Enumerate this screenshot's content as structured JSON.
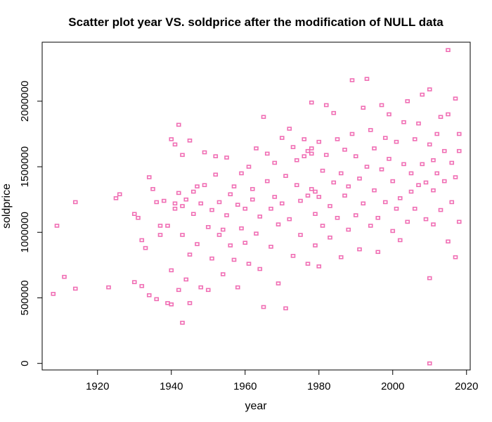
{
  "chart_data": {
    "type": "scatter",
    "title": "Scatter plot year VS. soldprice after the modification of NULL data",
    "xlabel": "year",
    "ylabel": "soldprice",
    "xlim": [
      1905,
      2021
    ],
    "ylim": [
      -50000,
      2450000
    ],
    "xticks": [
      1920,
      1940,
      1960,
      1980,
      2000,
      2020
    ],
    "yticks": [
      0,
      500000,
      1000000,
      1500000,
      2000000
    ],
    "xtick_labels": [
      "1920",
      "1940",
      "1960",
      "1980",
      "2000",
      "2020"
    ],
    "ytick_labels": [
      "0",
      "500000",
      "1000000",
      "1500000",
      "2000000"
    ],
    "grid": false,
    "marker": "open-square",
    "color": "#f06eb4",
    "points": [
      [
        1908,
        530000
      ],
      [
        1909,
        1050000
      ],
      [
        1911,
        660000
      ],
      [
        1914,
        570000
      ],
      [
        1914,
        1230000
      ],
      [
        1923,
        580000
      ],
      [
        1925,
        1260000
      ],
      [
        1926,
        1290000
      ],
      [
        1930,
        620000
      ],
      [
        1930,
        1140000
      ],
      [
        1931,
        1110000
      ],
      [
        1932,
        940000
      ],
      [
        1932,
        590000
      ],
      [
        1933,
        880000
      ],
      [
        1934,
        1420000
      ],
      [
        1934,
        520000
      ],
      [
        1935,
        1330000
      ],
      [
        1936,
        490000
      ],
      [
        1936,
        1230000
      ],
      [
        1937,
        980000
      ],
      [
        1937,
        1050000
      ],
      [
        1938,
        1240000
      ],
      [
        1939,
        1050000
      ],
      [
        1939,
        460000
      ],
      [
        1940,
        710000
      ],
      [
        1940,
        450000
      ],
      [
        1940,
        1710000
      ],
      [
        1941,
        1670000
      ],
      [
        1941,
        1220000
      ],
      [
        1941,
        1180000
      ],
      [
        1942,
        1820000
      ],
      [
        1942,
        560000
      ],
      [
        1942,
        1300000
      ],
      [
        1943,
        1590000
      ],
      [
        1943,
        1200000
      ],
      [
        1943,
        980000
      ],
      [
        1943,
        310000
      ],
      [
        1944,
        1250000
      ],
      [
        1944,
        640000
      ],
      [
        1945,
        1700000
      ],
      [
        1945,
        830000
      ],
      [
        1945,
        460000
      ],
      [
        1946,
        1310000
      ],
      [
        1946,
        1140000
      ],
      [
        1947,
        1350000
      ],
      [
        1947,
        910000
      ],
      [
        1948,
        580000
      ],
      [
        1948,
        1220000
      ],
      [
        1949,
        1610000
      ],
      [
        1949,
        1360000
      ],
      [
        1950,
        1040000
      ],
      [
        1950,
        560000
      ],
      [
        1951,
        1170000
      ],
      [
        1951,
        800000
      ],
      [
        1952,
        1580000
      ],
      [
        1952,
        1440000
      ],
      [
        1953,
        1230000
      ],
      [
        1953,
        980000
      ],
      [
        1954,
        1020000
      ],
      [
        1954,
        680000
      ],
      [
        1955,
        1130000
      ],
      [
        1955,
        1570000
      ],
      [
        1956,
        900000
      ],
      [
        1956,
        1290000
      ],
      [
        1957,
        790000
      ],
      [
        1957,
        1350000
      ],
      [
        1958,
        1210000
      ],
      [
        1958,
        580000
      ],
      [
        1959,
        1450000
      ],
      [
        1959,
        1030000
      ],
      [
        1960,
        1180000
      ],
      [
        1960,
        920000
      ],
      [
        1961,
        1500000
      ],
      [
        1961,
        760000
      ],
      [
        1962,
        1330000
      ],
      [
        1962,
        1250000
      ],
      [
        1963,
        1640000
      ],
      [
        1963,
        990000
      ],
      [
        1964,
        1120000
      ],
      [
        1964,
        720000
      ],
      [
        1965,
        1880000
      ],
      [
        1965,
        430000
      ],
      [
        1966,
        1600000
      ],
      [
        1966,
        1390000
      ],
      [
        1967,
        1180000
      ],
      [
        1967,
        890000
      ],
      [
        1968,
        1270000
      ],
      [
        1968,
        1530000
      ],
      [
        1969,
        1060000
      ],
      [
        1969,
        610000
      ],
      [
        1970,
        1720000
      ],
      [
        1970,
        1220000
      ],
      [
        1971,
        1430000
      ],
      [
        1971,
        420000
      ],
      [
        1972,
        1790000
      ],
      [
        1972,
        1100000
      ],
      [
        1973,
        1650000
      ],
      [
        1973,
        820000
      ],
      [
        1974,
        1360000
      ],
      [
        1974,
        1550000
      ],
      [
        1975,
        1240000
      ],
      [
        1975,
        980000
      ],
      [
        1976,
        1580000
      ],
      [
        1976,
        1710000
      ],
      [
        1977,
        1620000
      ],
      [
        1977,
        1280000
      ],
      [
        1977,
        760000
      ],
      [
        1978,
        1990000
      ],
      [
        1978,
        1600000
      ],
      [
        1978,
        1330000
      ],
      [
        1978,
        1640000
      ],
      [
        1979,
        1140000
      ],
      [
        1979,
        1310000
      ],
      [
        1979,
        900000
      ],
      [
        1980,
        1690000
      ],
      [
        1980,
        1270000
      ],
      [
        1980,
        740000
      ],
      [
        1981,
        1470000
      ],
      [
        1981,
        1050000
      ],
      [
        1982,
        1970000
      ],
      [
        1982,
        1590000
      ],
      [
        1983,
        1200000
      ],
      [
        1983,
        960000
      ],
      [
        1984,
        1910000
      ],
      [
        1984,
        1380000
      ],
      [
        1985,
        1710000
      ],
      [
        1985,
        1110000
      ],
      [
        1986,
        1450000
      ],
      [
        1986,
        810000
      ],
      [
        1987,
        1630000
      ],
      [
        1987,
        1280000
      ],
      [
        1988,
        1350000
      ],
      [
        1988,
        1020000
      ],
      [
        1989,
        2160000
      ],
      [
        1989,
        1750000
      ],
      [
        1990,
        1580000
      ],
      [
        1990,
        1130000
      ],
      [
        1991,
        1410000
      ],
      [
        1991,
        870000
      ],
      [
        1992,
        1950000
      ],
      [
        1992,
        1220000
      ],
      [
        1993,
        2170000
      ],
      [
        1993,
        1500000
      ],
      [
        1994,
        1780000
      ],
      [
        1994,
        1050000
      ],
      [
        1995,
        1320000
      ],
      [
        1995,
        1640000
      ],
      [
        1996,
        1110000
      ],
      [
        1996,
        850000
      ],
      [
        1997,
        1970000
      ],
      [
        1997,
        1480000
      ],
      [
        1998,
        1720000
      ],
      [
        1998,
        1230000
      ],
      [
        1999,
        1900000
      ],
      [
        1999,
        1560000
      ],
      [
        2000,
        1390000
      ],
      [
        2000,
        1010000
      ],
      [
        2001,
        1690000
      ],
      [
        2001,
        1180000
      ],
      [
        2002,
        1260000
      ],
      [
        2002,
        940000
      ],
      [
        2003,
        1840000
      ],
      [
        2003,
        1520000
      ],
      [
        2004,
        2000000
      ],
      [
        2004,
        1080000
      ],
      [
        2005,
        1450000
      ],
      [
        2005,
        1310000
      ],
      [
        2006,
        1710000
      ],
      [
        2006,
        1180000
      ],
      [
        2007,
        1830000
      ],
      [
        2007,
        1360000
      ],
      [
        2008,
        2050000
      ],
      [
        2008,
        1520000
      ],
      [
        2009,
        1100000
      ],
      [
        2009,
        1380000
      ],
      [
        2010,
        2090000
      ],
      [
        2010,
        1670000
      ],
      [
        2010,
        650000
      ],
      [
        2010,
        0
      ],
      [
        2011,
        1550000
      ],
      [
        2011,
        1320000
      ],
      [
        2011,
        1060000
      ],
      [
        2012,
        1750000
      ],
      [
        2012,
        1450000
      ],
      [
        2013,
        1880000
      ],
      [
        2013,
        1170000
      ],
      [
        2014,
        1620000
      ],
      [
        2014,
        1390000
      ],
      [
        2015,
        2390000
      ],
      [
        2015,
        1900000
      ],
      [
        2015,
        930000
      ],
      [
        2016,
        1530000
      ],
      [
        2016,
        1230000
      ],
      [
        2017,
        2020000
      ],
      [
        2017,
        1420000
      ],
      [
        2017,
        810000
      ],
      [
        2018,
        1750000
      ],
      [
        2018,
        1080000
      ],
      [
        2018,
        1620000
      ]
    ]
  }
}
